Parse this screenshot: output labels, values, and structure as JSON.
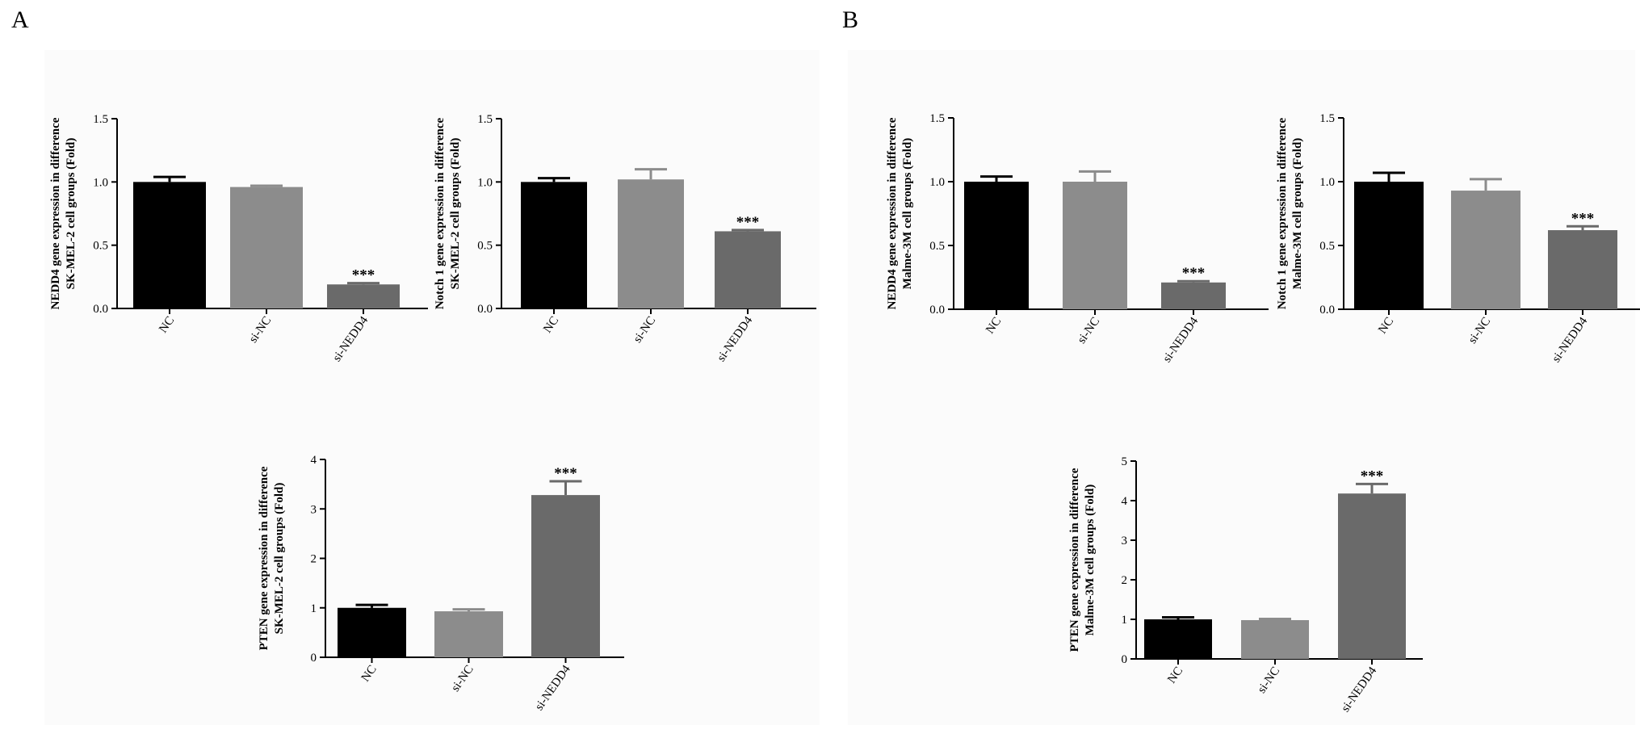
{
  "panels": [
    {
      "letter": "A",
      "sample": "SK-MEL-2"
    },
    {
      "letter": "B",
      "sample": "Malme-3M"
    }
  ],
  "colors": {
    "NC": "#000000",
    "si-NC": "#8c8c8c",
    "si-NEDD4": "#6a6a6a"
  },
  "chart_data": [
    {
      "id": "A1",
      "type": "bar",
      "categories": [
        "NC",
        "si-NC",
        "si-NEDD4"
      ],
      "values": [
        1.0,
        0.96,
        0.19
      ],
      "errors": [
        0.04,
        0.01,
        0.01
      ],
      "annotations": [
        "",
        "",
        "***"
      ],
      "ylabel": [
        "NEDD4 gene expression in difference",
        "SK-MEL-2 cell groups (Fold)"
      ],
      "ylim": [
        0,
        1.5
      ],
      "yticks": [
        "0.0",
        "0.5",
        "1.0",
        "1.5"
      ]
    },
    {
      "id": "A2",
      "type": "bar",
      "categories": [
        "NC",
        "si-NC",
        "si-NEDD4"
      ],
      "values": [
        1.0,
        1.02,
        0.61
      ],
      "errors": [
        0.03,
        0.08,
        0.01
      ],
      "annotations": [
        "",
        "",
        "***"
      ],
      "ylabel": [
        "Notch 1 gene expression in difference",
        "SK-MEL-2 cell groups (Fold)"
      ],
      "ylim": [
        0,
        1.5
      ],
      "yticks": [
        "0.0",
        "0.5",
        "1.0",
        "1.5"
      ]
    },
    {
      "id": "A3",
      "type": "bar",
      "categories": [
        "NC",
        "si-NC",
        "si-NEDD4"
      ],
      "values": [
        1.0,
        0.93,
        3.28
      ],
      "errors": [
        0.06,
        0.04,
        0.28
      ],
      "annotations": [
        "",
        "",
        "***"
      ],
      "ylabel": [
        "PTEN gene expression in difference",
        "SK-MEL-2 cell groups (Fold)"
      ],
      "ylim": [
        0,
        4
      ],
      "yticks": [
        "0",
        "1",
        "2",
        "3",
        "4"
      ]
    },
    {
      "id": "B1",
      "type": "bar",
      "categories": [
        "NC",
        "si-NC",
        "si-NEDD4"
      ],
      "values": [
        1.0,
        1.0,
        0.21
      ],
      "errors": [
        0.04,
        0.08,
        0.01
      ],
      "annotations": [
        "",
        "",
        "***"
      ],
      "ylabel": [
        "NEDD4 gene expression in difference",
        "Malme-3M cell groups (Fold)"
      ],
      "ylim": [
        0,
        1.5
      ],
      "yticks": [
        "0.0",
        "0.5",
        "1.0",
        "1.5"
      ]
    },
    {
      "id": "B2",
      "type": "bar",
      "categories": [
        "NC",
        "si-NC",
        "si-NEDD4"
      ],
      "values": [
        1.0,
        0.93,
        0.62
      ],
      "errors": [
        0.07,
        0.09,
        0.03
      ],
      "annotations": [
        "",
        "",
        "***"
      ],
      "ylabel": [
        "Notch 1 gene expression in difference",
        "Malme-3M cell groups (Fold)"
      ],
      "ylim": [
        0,
        1.5
      ],
      "yticks": [
        "0.0",
        "0.5",
        "1.0",
        "1.5"
      ]
    },
    {
      "id": "B3",
      "type": "bar",
      "categories": [
        "NC",
        "si-NC",
        "si-NEDD4"
      ],
      "values": [
        1.0,
        0.98,
        4.18
      ],
      "errors": [
        0.05,
        0.03,
        0.24
      ],
      "annotations": [
        "",
        "",
        "***"
      ],
      "ylabel": [
        "PTEN gene expression in difference",
        "Malme-3M cell groups (Fold)"
      ],
      "ylim": [
        0,
        5
      ],
      "yticks": [
        "0",
        "1",
        "2",
        "3",
        "4",
        "5"
      ]
    }
  ]
}
